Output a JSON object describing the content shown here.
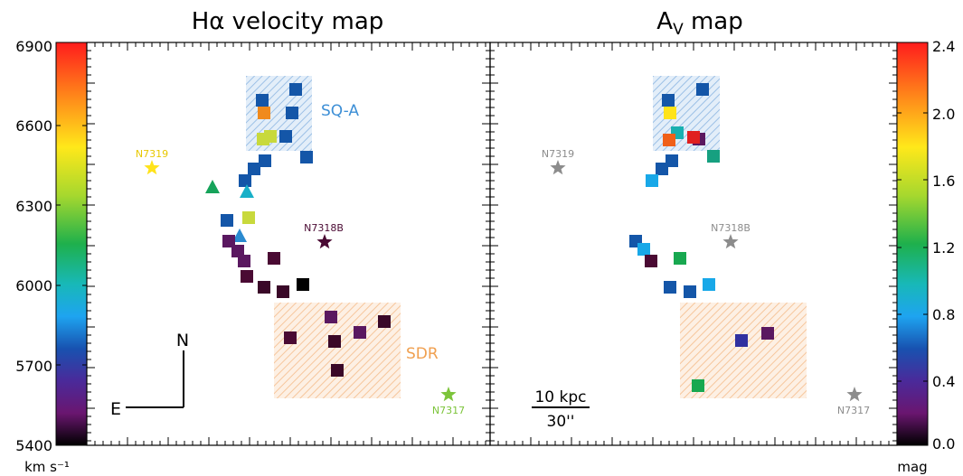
{
  "chart_data": [
    {
      "type": "scatter",
      "title": "Hα velocity map",
      "colorbar": {
        "ticks": [
          "6900",
          "6600",
          "6300",
          "6000",
          "5700",
          "5400"
        ],
        "unit": "km s⁻¹",
        "range": [
          5400,
          6900
        ]
      },
      "galaxies": [
        {
          "name": "N7319",
          "color": "#ffe31a"
        },
        {
          "name": "N7318B",
          "color": "#4a0a33"
        },
        {
          "name": "N7317",
          "color": "#7cc43a"
        }
      ],
      "regions": [
        {
          "label": "SQ-A",
          "color": "#3d8fd6"
        },
        {
          "label": "SDR",
          "color": "#f0a050"
        }
      ],
      "compass": {
        "north": "N",
        "east": "E"
      },
      "points": [
        {
          "shape": "square",
          "color": "#1456a8"
        },
        {
          "shape": "square",
          "color": "#1456a8"
        },
        {
          "shape": "square",
          "color": "#f08a1c"
        },
        {
          "shape": "square",
          "color": "#1456a8"
        },
        {
          "shape": "square",
          "color": "#1456a8"
        },
        {
          "shape": "square",
          "color": "#c8d93c"
        },
        {
          "shape": "square",
          "color": "#c8d93c"
        },
        {
          "shape": "square",
          "color": "#1456a8"
        },
        {
          "shape": "square",
          "color": "#1456a8"
        },
        {
          "shape": "square",
          "color": "#1456a8"
        },
        {
          "shape": "square",
          "color": "#1456a8"
        },
        {
          "shape": "triangle",
          "color": "#16a35a"
        },
        {
          "shape": "triangle",
          "color": "#18b0c8"
        },
        {
          "shape": "square",
          "color": "#c8d93c"
        },
        {
          "shape": "square",
          "color": "#1456a8"
        },
        {
          "shape": "triangle",
          "color": "#2a8ad0"
        },
        {
          "shape": "square",
          "color": "#5a1860"
        },
        {
          "shape": "square",
          "color": "#5a1860"
        },
        {
          "shape": "square",
          "color": "#5a1860"
        },
        {
          "shape": "square",
          "color": "#4a0a33"
        },
        {
          "shape": "square",
          "color": "#4a0a33"
        },
        {
          "shape": "square",
          "color": "#3a0828"
        },
        {
          "shape": "square",
          "color": "#3a0828"
        },
        {
          "shape": "square",
          "color": "#000000"
        },
        {
          "shape": "square",
          "color": "#5a1860"
        },
        {
          "shape": "square",
          "color": "#5a1860"
        },
        {
          "shape": "square",
          "color": "#3a0828"
        },
        {
          "shape": "square",
          "color": "#4a0a33"
        },
        {
          "shape": "square",
          "color": "#3a0828"
        },
        {
          "shape": "square",
          "color": "#3a0828"
        }
      ]
    },
    {
      "type": "scatter",
      "title": "A",
      "title_sub": "V",
      "title_rest": " map",
      "colorbar": {
        "ticks": [
          "2.4",
          "2.0",
          "1.6",
          "1.2",
          "0.8",
          "0.4",
          "0.0"
        ],
        "unit": "mag",
        "range": [
          0.0,
          2.4
        ]
      },
      "galaxies": [
        {
          "name": "N7319",
          "color": "#8c8c8c"
        },
        {
          "name": "N7318B",
          "color": "#8c8c8c"
        },
        {
          "name": "N7317",
          "color": "#8c8c8c"
        }
      ],
      "scalebar": {
        "top": "10 kpc",
        "bottom": "30''"
      },
      "points": [
        {
          "color": "#1456a8"
        },
        {
          "color": "#1456a8"
        },
        {
          "color": "#ffe31a"
        },
        {
          "color": "#5a1860"
        },
        {
          "color": "#18b0b0"
        },
        {
          "color": "#f06018"
        },
        {
          "color": "#e02020"
        },
        {
          "color": "#16a080"
        },
        {
          "color": "#1456a8"
        },
        {
          "color": "#1456a8"
        },
        {
          "color": "#18a8e8"
        },
        {
          "color": "#1456a8"
        },
        {
          "color": "#18a8e8"
        },
        {
          "color": "#4a0a33"
        },
        {
          "color": "#18a850"
        },
        {
          "color": "#1456a8"
        },
        {
          "color": "#1456a8"
        },
        {
          "color": "#18a8e8"
        },
        {
          "color": "#3030a0"
        },
        {
          "color": "#5a1860"
        },
        {
          "color": "#18a850"
        }
      ]
    }
  ]
}
